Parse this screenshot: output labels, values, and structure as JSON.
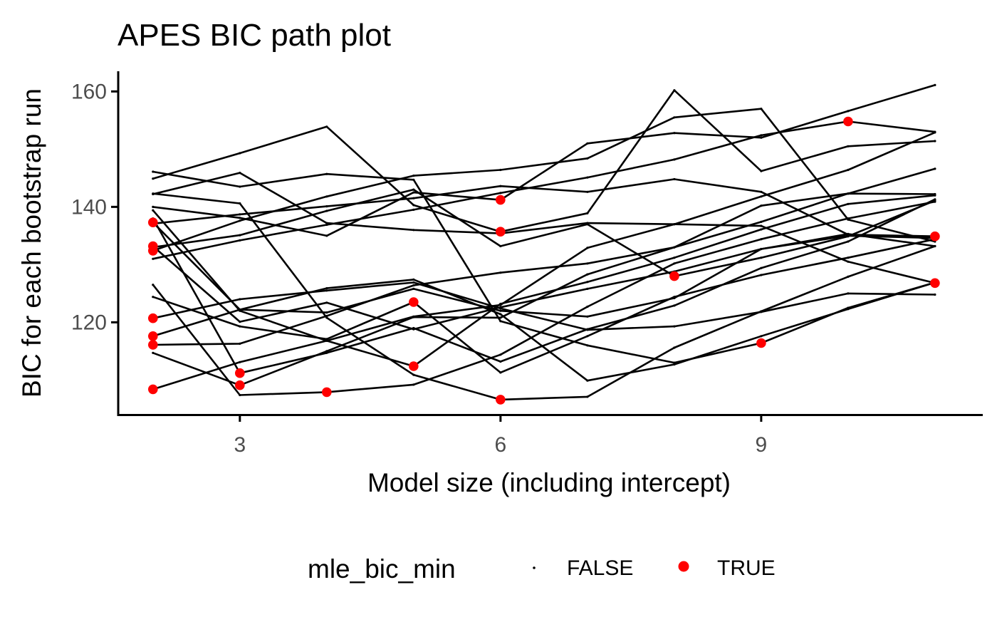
{
  "chart_data": {
    "type": "line",
    "title": "APES BIC path plot",
    "xlabel": "Model size (including intercept)",
    "ylabel": "BIC for each bootstrap run",
    "x": [
      2,
      3,
      4,
      5,
      6,
      7,
      8,
      9,
      10,
      11
    ],
    "xlim": [
      1.6,
      11.55
    ],
    "ylim": [
      104,
      163.5
    ],
    "x_ticks": [
      3,
      6,
      9
    ],
    "x_tick_labels": [
      "3",
      "6",
      "9"
    ],
    "y_ticks": [
      120,
      140,
      160
    ],
    "y_tick_labels": [
      "120",
      "140",
      "160"
    ],
    "grid": false,
    "legend": {
      "title": "mle_bic_min",
      "position": "bottom",
      "entries": [
        {
          "label": "FALSE",
          "color": "#000000",
          "marker": "small-dot"
        },
        {
          "label": "TRUE",
          "color": "#ff0000",
          "marker": "dot"
        }
      ]
    },
    "colors": {
      "line": "#000000",
      "false_point": "#000000",
      "true_point": "#ff0000"
    },
    "series": [
      {
        "values": [
          137.3,
          122.2,
          121.7,
          125.8,
          122.0,
          121.0,
          124.2,
          132.7,
          135.0,
          134.6
        ],
        "min_index": 0
      },
      {
        "values": [
          133.2,
          120.1,
          123.4,
          118.8,
          122.6,
          125.8,
          128.8,
          132.7,
          135.3,
          133.2
        ],
        "min_index": 0
      },
      {
        "values": [
          132.4,
          137.6,
          141.8,
          145.4,
          146.4,
          148.4,
          155.5,
          157.0,
          137.8,
          134.0
        ],
        "min_index": 0
      },
      {
        "values": [
          120.7,
          124.0,
          125.5,
          126.9,
          122.4,
          118.7,
          119.3,
          121.8,
          125.0,
          124.8
        ],
        "min_index": 0
      },
      {
        "values": [
          117.6,
          122.2,
          125.9,
          127.4,
          121.4,
          109.9,
          112.7,
          117.6,
          122.3,
          126.9
        ],
        "min_index": 0
      },
      {
        "values": [
          108.4,
          113.1,
          116.8,
          121.0,
          123.0,
          132.9,
          137.0,
          141.8,
          146.4,
          152.9
        ],
        "min_index": 0
      },
      {
        "values": [
          138.0,
          111.2,
          114.7,
          119.0,
          113.2,
          118.8,
          122.9,
          129.4,
          134.0,
          141.3
        ],
        "min_index": 1
      },
      {
        "values": [
          139.4,
          122.0,
          116.8,
          112.4,
          123.2,
          127.0,
          131.2,
          136.1,
          140.5,
          142.0
        ],
        "min_index": 3
      },
      {
        "values": [
          146.1,
          143.5,
          145.7,
          144.7,
          120.2,
          116.0,
          113.0,
          116.4,
          122.5,
          126.9
        ],
        "min_index": 7
      },
      {
        "values": [
          142.3,
          140.6,
          120.8,
          110.9,
          106.6,
          107.1,
          115.6,
          121.9,
          127.9,
          133.2
        ],
        "min_index": 4
      },
      {
        "values": [
          144.9,
          149.3,
          153.9,
          140.3,
          135.7,
          138.9,
          160.2,
          146.2,
          150.5,
          151.4
        ],
        "min_index": 4
      },
      {
        "values": [
          142.2,
          145.9,
          137.2,
          136.0,
          135.4,
          137.2,
          137.0,
          136.7,
          130.5,
          126.8
        ],
        "min_index": 9
      },
      {
        "values": [
          126.5,
          107.4,
          107.9,
          109.2,
          114.4,
          122.7,
          130.2,
          134.4,
          138.0,
          140.9
        ],
        "min_index": 2
      },
      {
        "values": [
          124.4,
          119.3,
          117.1,
          123.5,
          111.3,
          117.6,
          124.4,
          128.2,
          131.2,
          134.4
        ],
        "min_index": 3
      },
      {
        "values": [
          116.1,
          116.3,
          121.1,
          126.4,
          128.6,
          130.2,
          133.0,
          137.4,
          142.3,
          142.2
        ],
        "min_index": 0
      },
      {
        "values": [
          133.0,
          135.1,
          139.3,
          143.0,
          133.2,
          137.0,
          128.0,
          131.2,
          134.9,
          141.1
        ],
        "min_index": 6
      },
      {
        "values": [
          114.7,
          109.1,
          115.0,
          120.9,
          120.8,
          128.3,
          133.0,
          140.2,
          142.3,
          146.6
        ],
        "min_index": 1
      },
      {
        "values": [
          140.0,
          138.1,
          135.0,
          142.5,
          141.2,
          151.0,
          152.8,
          152.0,
          156.6,
          161.1
        ],
        "min_index": 4
      },
      {
        "values": [
          131.0,
          134.2,
          136.9,
          139.5,
          142.4,
          145.1,
          148.2,
          152.4,
          154.8,
          153.0
        ],
        "min_index": 8
      },
      {
        "values": [
          137.1,
          138.7,
          140.1,
          141.5,
          143.6,
          142.6,
          144.8,
          142.6,
          135.2,
          134.9
        ],
        "min_index": 9
      }
    ]
  }
}
